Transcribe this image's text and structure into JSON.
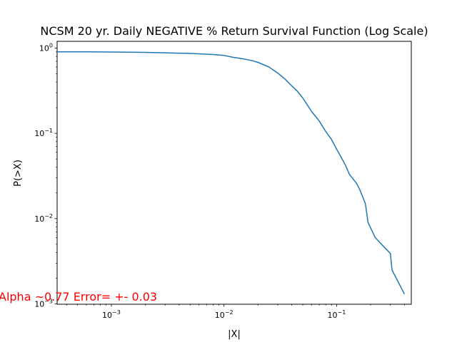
{
  "chart_data": {
    "type": "line",
    "title": "NCSM 20 yr. Daily NEGATIVE % Return Survival Function (Log Scale)",
    "xlabel": "|X|",
    "ylabel": "P(>X)",
    "xscale": "log",
    "yscale": "log",
    "xlim": [
      0.00033,
      0.46
    ],
    "ylim": [
      0.00099,
      1.2
    ],
    "grid": false,
    "x_ticks": [
      {
        "value": 0.001,
        "base": "10",
        "exp": "−3"
      },
      {
        "value": 0.01,
        "base": "10",
        "exp": "−2"
      },
      {
        "value": 0.1,
        "base": "10",
        "exp": "−1"
      }
    ],
    "y_ticks": [
      {
        "value": 0.001,
        "base": "10",
        "exp": "−3"
      },
      {
        "value": 0.01,
        "base": "10",
        "exp": "−2"
      },
      {
        "value": 0.1,
        "base": "10",
        "exp": "−1"
      },
      {
        "value": 1,
        "base": "10",
        "exp": "0"
      }
    ],
    "series_color": "#1f77b4",
    "annotation": {
      "text": "Alpha ~0.77  Error= +- 0.03",
      "color": "#ff0000"
    },
    "series": [
      {
        "points": [
          [
            0.00033,
            0.905
          ],
          [
            0.0006,
            0.905
          ],
          [
            0.001,
            0.9
          ],
          [
            0.002,
            0.89
          ],
          [
            0.003,
            0.88
          ],
          [
            0.005,
            0.865
          ],
          [
            0.008,
            0.84
          ],
          [
            0.01,
            0.82
          ],
          [
            0.012,
            0.78
          ],
          [
            0.015,
            0.745
          ],
          [
            0.018,
            0.71
          ],
          [
            0.02,
            0.68
          ],
          [
            0.025,
            0.6
          ],
          [
            0.03,
            0.51
          ],
          [
            0.035,
            0.43
          ],
          [
            0.04,
            0.36
          ],
          [
            0.045,
            0.31
          ],
          [
            0.05,
            0.26
          ],
          [
            0.06,
            0.18
          ],
          [
            0.07,
            0.14
          ],
          [
            0.08,
            0.105
          ],
          [
            0.09,
            0.085
          ],
          [
            0.1,
            0.065
          ],
          [
            0.11,
            0.052
          ],
          [
            0.12,
            0.042
          ],
          [
            0.13,
            0.033
          ],
          [
            0.15,
            0.026
          ],
          [
            0.16,
            0.022
          ],
          [
            0.18,
            0.015
          ],
          [
            0.19,
            0.009
          ],
          [
            0.22,
            0.006
          ],
          [
            0.25,
            0.005
          ],
          [
            0.3,
            0.0039
          ],
          [
            0.31,
            0.0025
          ],
          [
            0.4,
            0.0013
          ]
        ]
      }
    ]
  }
}
